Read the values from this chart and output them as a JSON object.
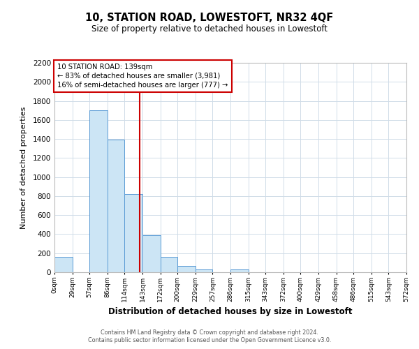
{
  "title": "10, STATION ROAD, LOWESTOFT, NR32 4QF",
  "subtitle": "Size of property relative to detached houses in Lowestoft",
  "xlabel": "Distribution of detached houses by size in Lowestoft",
  "ylabel": "Number of detached properties",
  "bar_edges": [
    0,
    29,
    57,
    86,
    114,
    143,
    172,
    200,
    229,
    257,
    286,
    315,
    343,
    372,
    400,
    429,
    458,
    486,
    515,
    543,
    572
  ],
  "bar_heights": [
    160,
    0,
    1700,
    1390,
    825,
    390,
    165,
    65,
    30,
    0,
    30,
    0,
    0,
    0,
    0,
    0,
    0,
    0,
    0,
    0
  ],
  "bar_color": "#cce5f5",
  "bar_edge_color": "#5b9bd5",
  "property_value": 139,
  "vline_color": "#cc0000",
  "annotation_title": "10 STATION ROAD: 139sqm",
  "annotation_line1": "← 83% of detached houses are smaller (3,981)",
  "annotation_line2": "16% of semi-detached houses are larger (777) →",
  "annotation_box_edge": "#cc0000",
  "ylim": [
    0,
    2200
  ],
  "yticks": [
    0,
    200,
    400,
    600,
    800,
    1000,
    1200,
    1400,
    1600,
    1800,
    2000,
    2200
  ],
  "footer1": "Contains HM Land Registry data © Crown copyright and database right 2024.",
  "footer2": "Contains public sector information licensed under the Open Government Licence v3.0.",
  "background_color": "#ffffff",
  "grid_color": "#d0dce8"
}
